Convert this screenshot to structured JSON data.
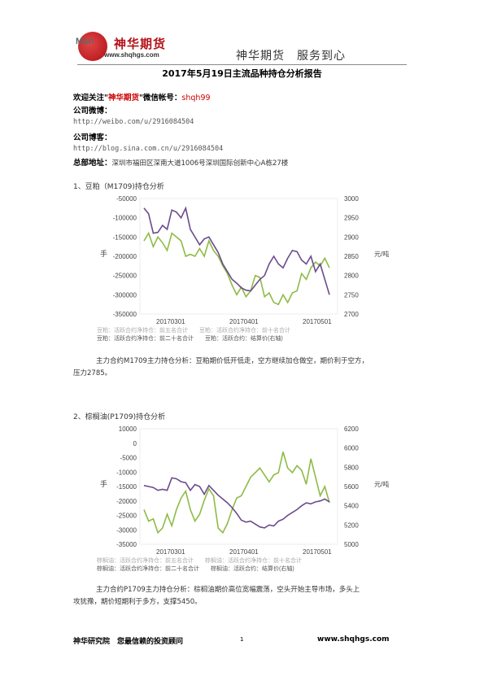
{
  "header": {
    "logo_text": "Man",
    "brand": "神华期货",
    "url": "www.shqhgs.com",
    "slogan": "神华期货　服务到心"
  },
  "title": "2017年5月19日主流品种持仓分析报告",
  "contact": {
    "wechat_prefix": "欢迎关注\"",
    "wechat_brand": "神华期货",
    "wechat_mid": "\"微信帐号：",
    "wechat_id": "shqh99",
    "weibo_label": "公司微博：",
    "weibo_url": "http://weibo.com/u/2916084504",
    "blog_label": "公司博客：",
    "blog_url": "http://blog.sina.com.cn/u/2916084504",
    "address_label": "总部地址：",
    "address": "深圳市福田区深南大道1006号深圳国际创新中心A栋27楼"
  },
  "sections": [
    {
      "heading": "1、豆粕（M1709)持仓分析",
      "legend_1": "豆粕：活跃合约净持仓：前五名合计　　豆粕：活跃合约净持仓：前十名合计",
      "legend_2": "豆粕：活跃合约净持仓：前二十名合计　　豆粕：活跃合约：结算价(右轴)",
      "analysis_1": "主力合约M1709主力持仓分析：豆粕期价低开低走，空方继续加仓做空，期价利于空方，",
      "analysis_2": "压力2785。"
    },
    {
      "heading": "2、棕榈油(P1709)持仓分析",
      "legend_1": "棕榈油：活跃合约净持仓：前五名合计　　棕榈油：活跃合约净持仓：前十名合计",
      "legend_2": "棕榈油：活跃合约净持仓：前二十名合计　　棕榈油：活跃合约：结算价(右轴)",
      "analysis_1": "主力合约P1709主力持仓分析：棕榈油期价高位宽幅震荡，空头开始主导市场，多头上",
      "analysis_2": "攻犹豫，期价短期利于多方，支撑5450。"
    }
  ],
  "chart_data": [
    {
      "type": "line",
      "ylabel_left": "手",
      "ylabel_right": "元/吨",
      "ylim_left": [
        -350000,
        -50000
      ],
      "ylim_right": [
        2700,
        3000
      ],
      "yticks_left": [
        "-50000",
        "-100000",
        "-150000",
        "-200000",
        "-250000",
        "-300000",
        "-350000"
      ],
      "yticks_right": [
        "3000",
        "2950",
        "2900",
        "2850",
        "2800",
        "2750",
        "2700"
      ],
      "xticks": [
        "20170301",
        "20170401",
        "20170501"
      ],
      "series": [
        {
          "name": "豆粕：活跃合约净持仓：前二十名合计",
          "color": "#8dbb46",
          "axis": "left",
          "values": [
            -160000,
            -140000,
            -175000,
            -150000,
            -165000,
            -185000,
            -140000,
            -150000,
            -160000,
            -200000,
            -195000,
            -200000,
            -180000,
            -200000,
            -160000,
            -185000,
            -200000,
            -225000,
            -245000,
            -275000,
            -300000,
            -280000,
            -305000,
            -290000,
            -250000,
            -255000,
            -305000,
            -295000,
            -320000,
            -325000,
            -300000,
            -320000,
            -295000,
            -290000,
            -245000,
            -260000,
            -230000,
            -215000,
            -225000,
            -205000,
            -230000
          ]
        },
        {
          "name": "豆粕：活跃合约：结算价(右轴)",
          "color": "#6b4b8c",
          "axis": "right",
          "values": [
            2975,
            2960,
            2910,
            2912,
            2930,
            2920,
            2970,
            2965,
            2950,
            2975,
            2920,
            2900,
            2880,
            2895,
            2900,
            2880,
            2860,
            2830,
            2810,
            2790,
            2780,
            2768,
            2762,
            2760,
            2775,
            2790,
            2800,
            2830,
            2850,
            2830,
            2820,
            2845,
            2865,
            2862,
            2840,
            2830,
            2850,
            2810,
            2830,
            2790,
            2750
          ]
        }
      ]
    },
    {
      "type": "line",
      "ylabel_left": "手",
      "ylabel_right": "元/吨",
      "ylim_left": [
        -35000,
        15000
      ],
      "ylim_right": [
        5000,
        6200
      ],
      "yticks_left": [
        "10000",
        "0",
        "-5000",
        "-10000",
        "-15000",
        "-20000",
        "-25000",
        "-30000",
        "-35000"
      ],
      "yticks_right": [
        "6200",
        "6000",
        "5800",
        "5600",
        "5400",
        "5200",
        "5000"
      ],
      "xticks": [
        "20170301",
        "20170401",
        "20170501"
      ],
      "series": [
        {
          "name": "棕榈油：活跃合约净持仓：前二十名合计",
          "color": "#8dbb46",
          "axis": "left",
          "values": [
            -20000,
            -25000,
            -24000,
            -30000,
            -28000,
            -22000,
            -27000,
            -20000,
            -15000,
            -12000,
            -20000,
            -25000,
            -22000,
            -16000,
            -11000,
            -14000,
            -28000,
            -30000,
            -26000,
            -20000,
            -15000,
            -14000,
            -10000,
            -6000,
            -4000,
            -2000,
            -5000,
            -8000,
            -5000,
            -4000,
            5000,
            -2000,
            -4000,
            -1000,
            -3000,
            -9000,
            2000,
            -6000,
            -14000,
            -10000,
            -17000
          ]
        },
        {
          "name": "棕榈油：活跃合约：结算价(右轴)",
          "color": "#6b4b8c",
          "axis": "right",
          "values": [
            5610,
            5600,
            5590,
            5560,
            5570,
            5560,
            5690,
            5680,
            5650,
            5640,
            5560,
            5620,
            5600,
            5520,
            5610,
            5560,
            5510,
            5470,
            5430,
            5380,
            5320,
            5250,
            5230,
            5240,
            5210,
            5180,
            5170,
            5200,
            5190,
            5240,
            5260,
            5300,
            5330,
            5360,
            5400,
            5430,
            5420,
            5440,
            5450,
            5470,
            5440
          ]
        }
      ]
    }
  ],
  "footer": {
    "left": "神华研究院　您最信赖的投资顾问",
    "page": "1",
    "right": "www.shqhgs.com"
  }
}
